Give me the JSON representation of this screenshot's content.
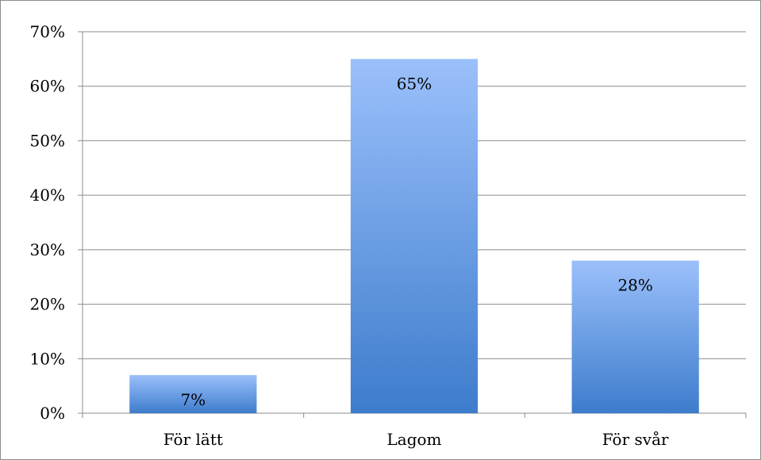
{
  "chart_data": {
    "type": "bar",
    "categories": [
      "För lätt",
      "Lagom",
      "För svår"
    ],
    "values": [
      7,
      65,
      28
    ],
    "data_labels": [
      "7%",
      "65%",
      "28%"
    ],
    "ylim": [
      0,
      70
    ],
    "yticks": [
      "0%",
      "10%",
      "20%",
      "30%",
      "40%",
      "50%",
      "60%",
      "70%"
    ],
    "grid": true,
    "legend": "none",
    "bar_color_top": "#9bc0fb",
    "bar_color_bottom": "#3d7ccc"
  }
}
